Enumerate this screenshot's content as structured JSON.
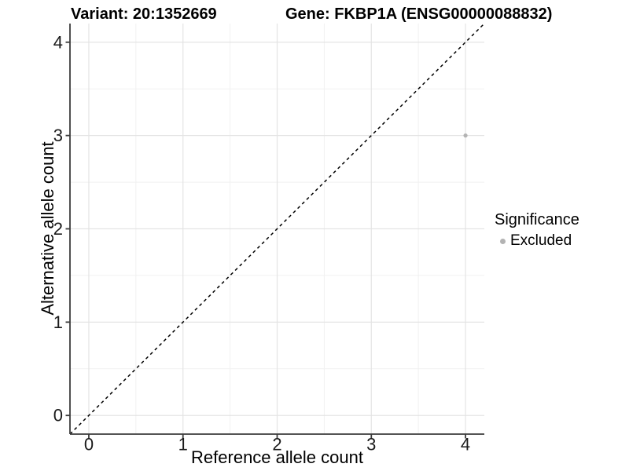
{
  "header": {
    "variant_title": "Variant: 20:1352669",
    "gene_title": "Gene: FKBP1A (ENSG00000088832)"
  },
  "chart_data": {
    "type": "scatter",
    "title_left": "Variant: 20:1352669",
    "title_right": "Gene: FKBP1A (ENSG00000088832)",
    "xlabel": "Reference allele count",
    "ylabel": "Alternative allele count",
    "xlim": [
      -0.2,
      4.2
    ],
    "ylim": [
      -0.2,
      4.2
    ],
    "x_ticks": [
      0,
      1,
      2,
      3,
      4
    ],
    "y_ticks": [
      0,
      1,
      2,
      3,
      4
    ],
    "x_minor_ticks": [
      0.5,
      1.5,
      2.5,
      3.5
    ],
    "y_minor_ticks": [
      0.5,
      1.5,
      2.5,
      3.5
    ],
    "grid": true,
    "legend_position": "right",
    "reference_line": {
      "kind": "abline",
      "slope": 1,
      "intercept": 0,
      "style": "dashed",
      "color": "#000000"
    },
    "series": [
      {
        "name": "Excluded",
        "color": "#b3b3b3",
        "points": [
          {
            "x": 4,
            "y": 3
          }
        ]
      }
    ],
    "legend": {
      "title": "Significance",
      "items": [
        {
          "label": "Excluded",
          "color": "#b3b3b3"
        }
      ]
    }
  },
  "colors": {
    "background": "#ffffff",
    "grid_major": "#e4e4e4",
    "grid_minor": "#f1f1f1",
    "axis_line": "#3c3c3c",
    "tick_label": "#1a1a1a",
    "point_excluded": "#b3b3b3",
    "reference_line": "#000000"
  }
}
